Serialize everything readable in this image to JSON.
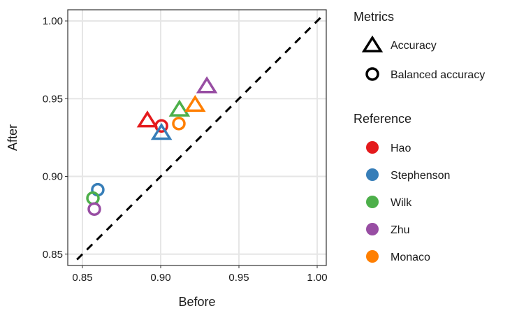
{
  "chart_data": {
    "type": "scatter",
    "xlabel": "Before",
    "ylabel": "After",
    "xlim": [
      0.843,
      1.006
    ],
    "ylim": [
      0.843,
      1.007
    ],
    "xticks": [
      "0.85",
      "0.90",
      "0.95",
      "1.00"
    ],
    "yticks": [
      "0.85",
      "0.90",
      "0.95",
      "1.00"
    ],
    "grid": true,
    "reference_line": "y = x (dashed)",
    "legend": {
      "placement": "right",
      "shape_title": "Metrics",
      "shapes": [
        {
          "label": "Accuracy",
          "shape": "triangle"
        },
        {
          "label": "Balanced accuracy",
          "shape": "circle"
        }
      ],
      "color_title": "Reference",
      "colors": [
        {
          "label": "Hao",
          "color": "#e41a1c"
        },
        {
          "label": "Stephenson",
          "color": "#377eb8"
        },
        {
          "label": "Wilk",
          "color": "#4daf4a"
        },
        {
          "label": "Zhu",
          "color": "#984ea3"
        },
        {
          "label": "Monaco",
          "color": "#ff7f00"
        }
      ]
    },
    "points": [
      {
        "reference": "Hao",
        "metric": "Accuracy",
        "x": 0.8915,
        "y": 0.936
      },
      {
        "reference": "Hao",
        "metric": "Balanced accuracy",
        "x": 0.9005,
        "y": 0.9325
      },
      {
        "reference": "Stephenson",
        "metric": "Accuracy",
        "x": 0.9005,
        "y": 0.928
      },
      {
        "reference": "Stephenson",
        "metric": "Balanced accuracy",
        "x": 0.8598,
        "y": 0.8914
      },
      {
        "reference": "Wilk",
        "metric": "Accuracy",
        "x": 0.912,
        "y": 0.943
      },
      {
        "reference": "Wilk",
        "metric": "Balanced accuracy",
        "x": 0.8567,
        "y": 0.886
      },
      {
        "reference": "Zhu",
        "metric": "Accuracy",
        "x": 0.9295,
        "y": 0.958
      },
      {
        "reference": "Zhu",
        "metric": "Balanced accuracy",
        "x": 0.8576,
        "y": 0.879
      },
      {
        "reference": "Monaco",
        "metric": "Accuracy",
        "x": 0.922,
        "y": 0.946
      },
      {
        "reference": "Monaco",
        "metric": "Balanced accuracy",
        "x": 0.9116,
        "y": 0.934
      }
    ]
  }
}
